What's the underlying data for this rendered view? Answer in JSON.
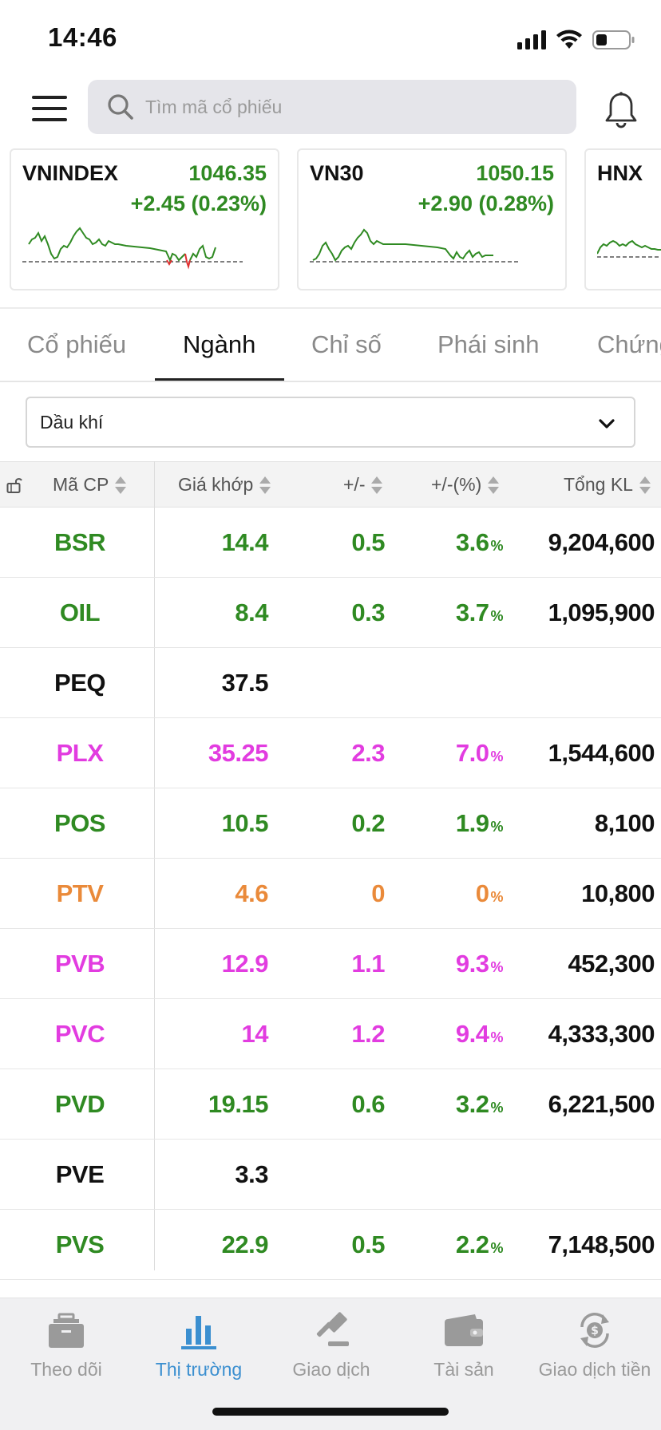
{
  "status_bar": {
    "time": "14:46"
  },
  "search": {
    "placeholder": "Tìm mã cổ phiếu"
  },
  "indices": [
    {
      "name": "VNINDEX",
      "value": "1046.35",
      "change": "+2.45 (0.23%)"
    },
    {
      "name": "VN30",
      "value": "1050.15",
      "change": "+2.90 (0.28%)"
    },
    {
      "name": "HNX",
      "value": "",
      "change": ""
    }
  ],
  "tabs": [
    {
      "label": "Cổ phiếu"
    },
    {
      "label": "Ngành"
    },
    {
      "label": "Chỉ số"
    },
    {
      "label": "Phái sinh"
    },
    {
      "label": "Chứng"
    }
  ],
  "active_tab": "Ngành",
  "industry_select": {
    "value": "Dầu khí"
  },
  "table": {
    "headers": {
      "symbol": "Mã CP",
      "price": "Giá khớp",
      "change": "+/-",
      "pct": "+/-(%)",
      "volume": "Tổng KL"
    },
    "pct_sign": "%",
    "rows": [
      {
        "symbol": "BSR",
        "price": "14.4",
        "change": "0.5",
        "pct": "3.6",
        "volume": "9,204,600",
        "status": "up"
      },
      {
        "symbol": "OIL",
        "price": "8.4",
        "change": "0.3",
        "pct": "3.7",
        "volume": "1,095,900",
        "status": "up"
      },
      {
        "symbol": "PEQ",
        "price": "37.5",
        "change": "",
        "pct": "",
        "volume": "",
        "status": "none"
      },
      {
        "symbol": "PLX",
        "price": "35.25",
        "change": "2.3",
        "pct": "7.0",
        "volume": "1,544,600",
        "status": "ceil"
      },
      {
        "symbol": "POS",
        "price": "10.5",
        "change": "0.2",
        "pct": "1.9",
        "volume": "8,100",
        "status": "up"
      },
      {
        "symbol": "PTV",
        "price": "4.6",
        "change": "0",
        "pct": "0",
        "volume": "10,800",
        "status": "ref"
      },
      {
        "symbol": "PVB",
        "price": "12.9",
        "change": "1.1",
        "pct": "9.3",
        "volume": "452,300",
        "status": "ceil"
      },
      {
        "symbol": "PVC",
        "price": "14",
        "change": "1.2",
        "pct": "9.4",
        "volume": "4,333,300",
        "status": "ceil"
      },
      {
        "symbol": "PVD",
        "price": "19.15",
        "change": "0.6",
        "pct": "3.2",
        "volume": "6,221,500",
        "status": "up"
      },
      {
        "symbol": "PVE",
        "price": "3.3",
        "change": "",
        "pct": "",
        "volume": "",
        "status": "none"
      },
      {
        "symbol": "PVS",
        "price": "22.9",
        "change": "0.5",
        "pct": "2.2",
        "volume": "7,148,500",
        "status": "up"
      }
    ]
  },
  "colors": {
    "up": "#2f8a22",
    "ceiling": "#e23ce0",
    "reference": "#ea8a3a",
    "accent": "#3b8fd0"
  },
  "bottom_nav": [
    {
      "label": "Theo dõi",
      "icon": "briefcase-icon"
    },
    {
      "label": "Thị trường",
      "icon": "bar-chart-icon"
    },
    {
      "label": "Giao dịch",
      "icon": "gavel-icon"
    },
    {
      "label": "Tài sản",
      "icon": "wallet-icon"
    },
    {
      "label": "Giao dịch tiền",
      "icon": "money-exchange-icon"
    }
  ],
  "active_nav": "Thị trường"
}
